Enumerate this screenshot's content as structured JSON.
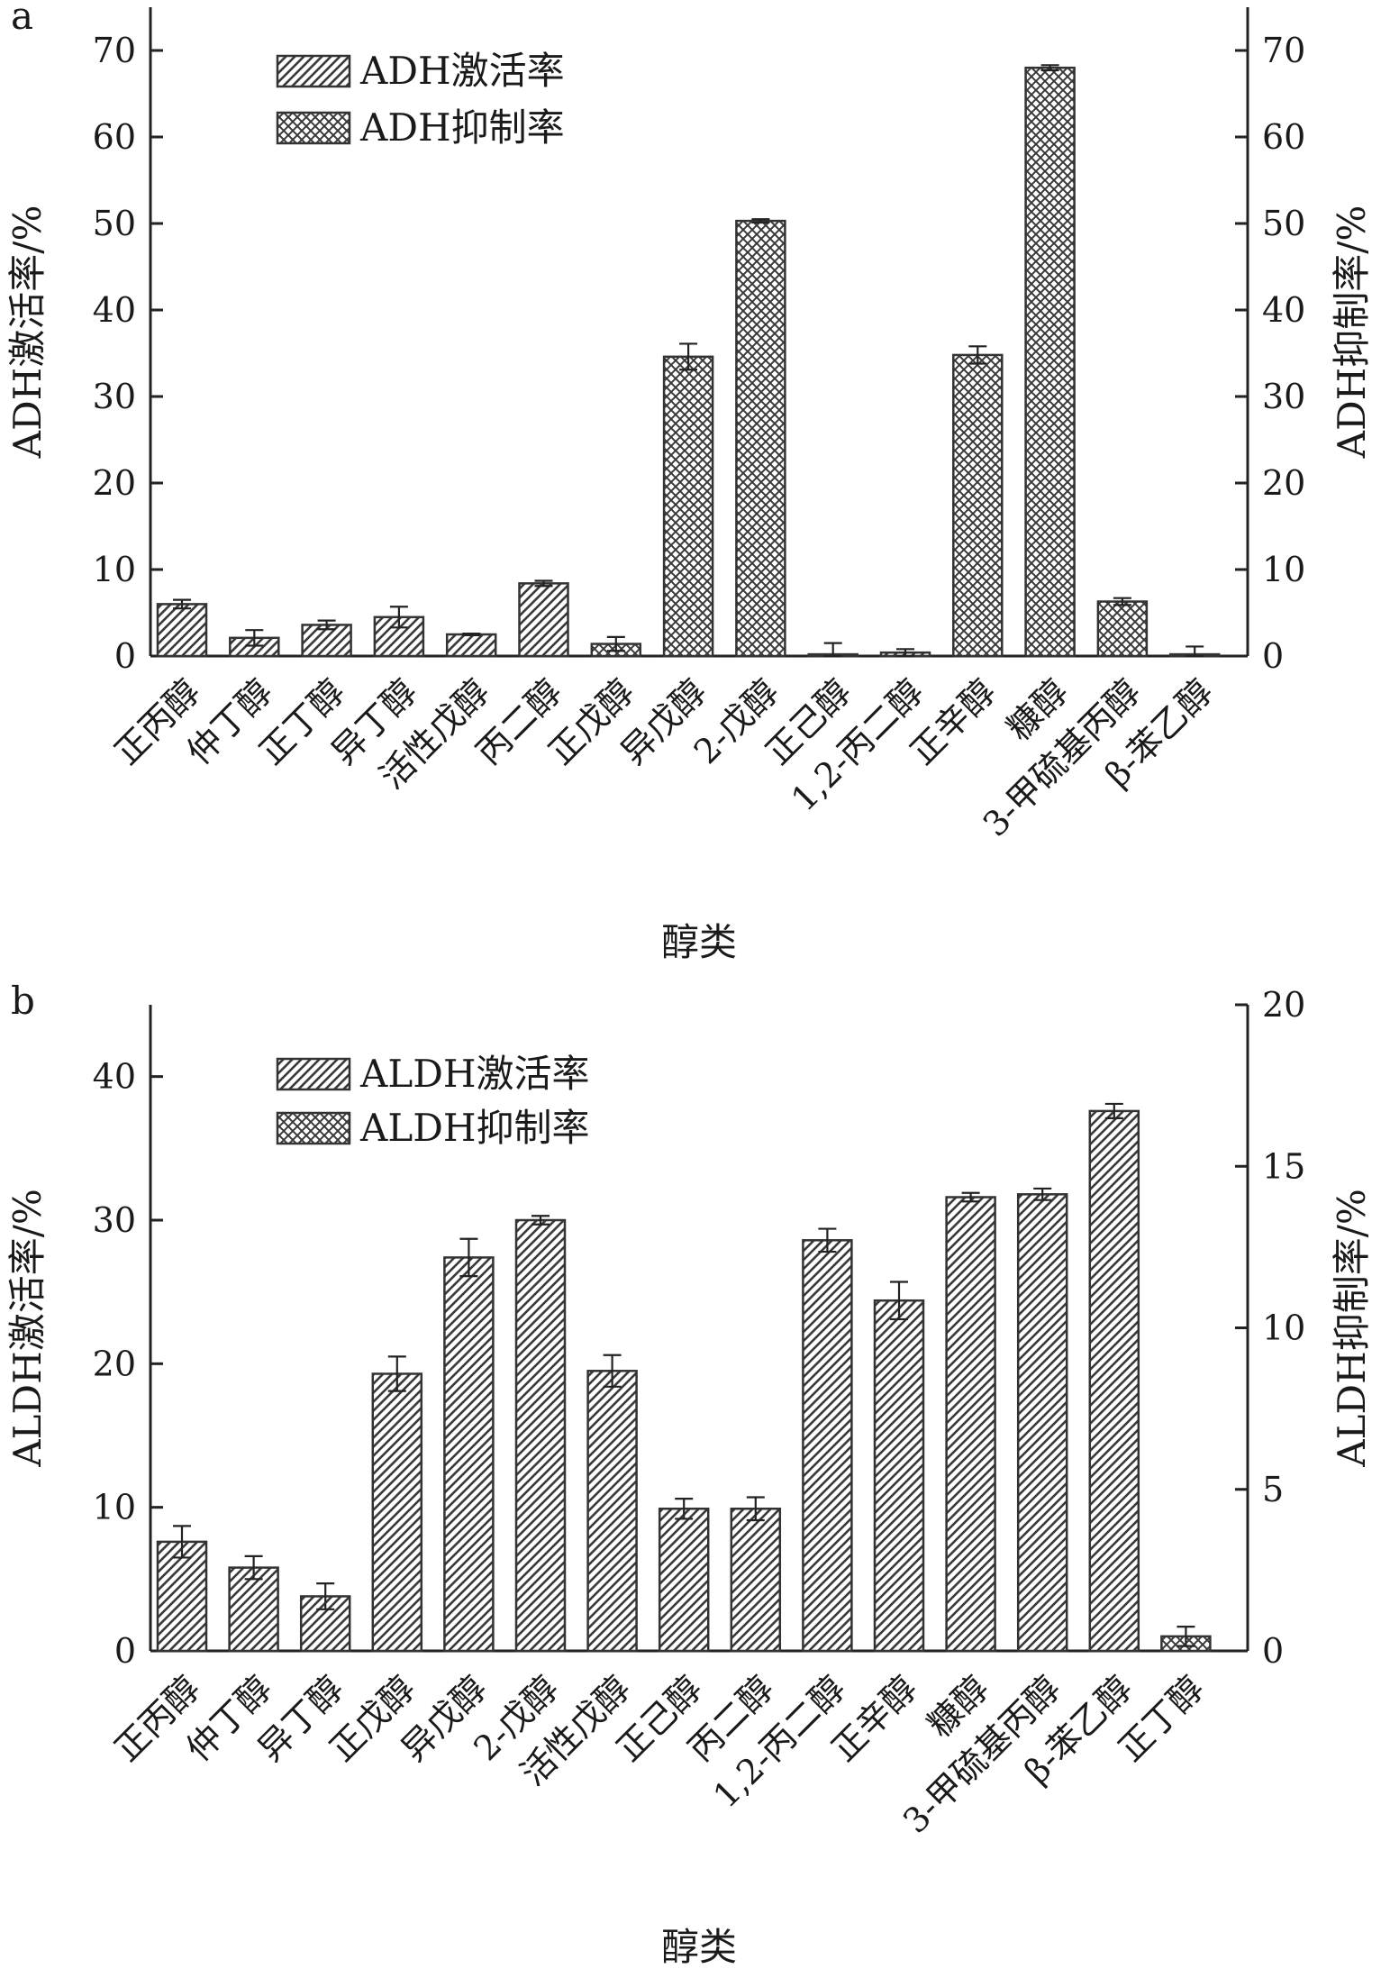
{
  "chart_data": [
    {
      "type": "bar",
      "panel_label": "a",
      "categories": [
        "正丙醇",
        "仲丁醇",
        "正丁醇",
        "异丁醇",
        "活性戊醇",
        "丙二醇",
        "正戊醇",
        "异戊醇",
        "2-戊醇",
        "正己醇",
        "1,2-丙二醇",
        "正辛醇",
        "糠醇",
        "3-甲硫基丙醇",
        "β-苯乙醇"
      ],
      "values": [
        6.0,
        2.1,
        3.6,
        4.5,
        2.5,
        8.4,
        1.4,
        34.6,
        50.3,
        0.2,
        0.4,
        34.8,
        68.0,
        6.3,
        0.2
      ],
      "errors": [
        0.5,
        0.9,
        0.5,
        1.2,
        0.1,
        0.3,
        0.8,
        1.5,
        0.2,
        1.3,
        0.4,
        1.0,
        0.3,
        0.4,
        0.9
      ],
      "pattern": [
        "activation",
        "activation",
        "activation",
        "activation",
        "activation",
        "activation",
        "inhibition",
        "inhibition",
        "inhibition",
        "activation",
        "activation",
        "inhibition",
        "inhibition",
        "inhibition",
        "activation"
      ],
      "legend": [
        {
          "name": "ADH激活率",
          "pattern": "activation"
        },
        {
          "name": "ADH抑制率",
          "pattern": "inhibition"
        }
      ],
      "legend_position": "top-left",
      "xlabel": "醇类",
      "ylabel": "ADH激活率/%",
      "ylabel_right": "ADH抑制率/%",
      "ylim": [
        0,
        75
      ],
      "yticks": [
        0,
        10,
        20,
        30,
        40,
        50,
        60,
        70
      ],
      "ylim_right": [
        0,
        75
      ],
      "yticks_right": [
        0,
        10,
        20,
        30,
        40,
        50,
        60,
        70
      ],
      "grid": false
    },
    {
      "type": "bar",
      "panel_label": "b",
      "categories": [
        "正丙醇",
        "仲丁醇",
        "异丁醇",
        "正戊醇",
        "异戊醇",
        "2-戊醇",
        "活性戊醇",
        "正己醇",
        "丙二醇",
        "1,2-丙二醇",
        "正辛醇",
        "糠醇",
        "3-甲硫基丙醇",
        "β-苯乙醇",
        "正丁醇"
      ],
      "values": [
        7.6,
        5.8,
        3.8,
        19.3,
        27.4,
        30.0,
        19.5,
        9.9,
        9.9,
        28.6,
        24.4,
        31.6,
        31.8,
        37.6,
        0.45
      ],
      "errors": [
        1.1,
        0.8,
        0.9,
        1.2,
        1.3,
        0.3,
        1.1,
        0.7,
        0.8,
        0.8,
        1.3,
        0.3,
        0.4,
        0.5,
        0.3
      ],
      "value_axis": [
        "left",
        "left",
        "left",
        "left",
        "left",
        "left",
        "left",
        "left",
        "left",
        "left",
        "left",
        "left",
        "left",
        "left",
        "right"
      ],
      "pattern": [
        "activation",
        "activation",
        "activation",
        "activation",
        "activation",
        "activation",
        "activation",
        "activation",
        "activation",
        "activation",
        "activation",
        "activation",
        "activation",
        "activation",
        "inhibition"
      ],
      "legend": [
        {
          "name": "ALDH激活率",
          "pattern": "activation"
        },
        {
          "name": "ALDH抑制率",
          "pattern": "inhibition"
        }
      ],
      "legend_position": "top-left",
      "xlabel": "醇类",
      "ylabel": "ALDH激活率/%",
      "ylabel_right": "ALDH抑制率/%",
      "ylim": [
        0,
        45
      ],
      "yticks": [
        0,
        10,
        20,
        30,
        40
      ],
      "ylim_right": [
        0,
        20
      ],
      "yticks_right": [
        0,
        5,
        10,
        15,
        20
      ],
      "grid": false
    }
  ]
}
